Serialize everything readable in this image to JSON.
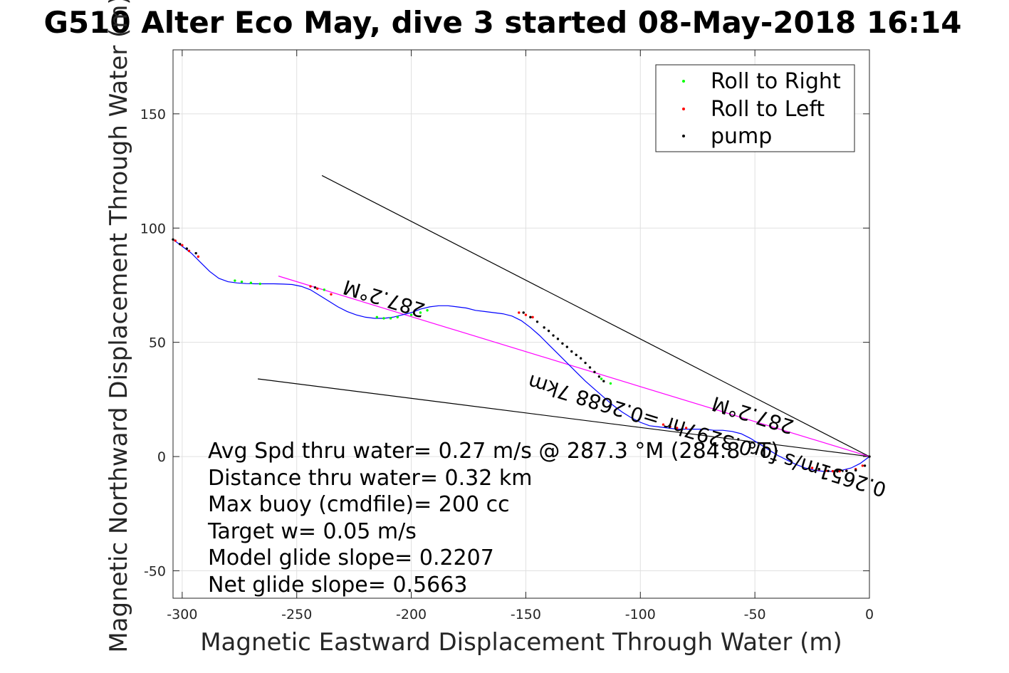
{
  "chart_data": {
    "type": "line",
    "title": "G510 Alter Eco May, dive 3 started 08-May-2018 16:14",
    "xlabel": "Magnetic Eastward Displacement Through Water (m)",
    "ylabel": "Magnetic Northward Displacement Through Water (m)",
    "xlim": [
      -304,
      0
    ],
    "ylim": [
      -62,
      178
    ],
    "xticks": [
      -300,
      -250,
      -200,
      -150,
      -100,
      -50,
      0
    ],
    "yticks": [
      -50,
      0,
      50,
      100,
      150
    ],
    "xtick_labels": [
      "-300",
      "-250",
      "-200",
      "-150",
      "-100",
      "-50",
      "0"
    ],
    "ytick_labels": [
      "-50",
      "0",
      "50",
      "100",
      "150"
    ],
    "grid": true,
    "legend_position": "top-right",
    "legend": [
      {
        "label": "Roll to Right",
        "color": "#00ff00"
      },
      {
        "label": "Roll to Left",
        "color": "#ff0000"
      },
      {
        "label": "pump",
        "color": "#000000"
      }
    ],
    "colors": {
      "track": "#0000ff",
      "avg_line": "#ff00ff",
      "heading_lines": "#000000",
      "grid": "#e0e0e0",
      "axes": "#262626"
    },
    "track": {
      "x": [
        -304,
        -300,
        -296,
        -292,
        -288,
        -284,
        -280,
        -276,
        -272,
        -268,
        -264,
        -260,
        -256,
        -252,
        -248,
        -244,
        -240,
        -236,
        -232,
        -228,
        -224,
        -220,
        -216,
        -212,
        -208,
        -204,
        -200,
        -196,
        -192,
        -188,
        -184,
        -180,
        -176,
        -172,
        -168,
        -164,
        -160,
        -156,
        -152,
        -148,
        -144,
        -140,
        -136,
        -132,
        -128,
        -124,
        -120,
        -116,
        -112,
        -108,
        -104,
        -100,
        -96,
        -92,
        -88,
        -84,
        -80,
        -76,
        -72,
        -68,
        -64,
        -60,
        -56,
        -52,
        -48,
        -44,
        -40,
        -36,
        -32,
        -28,
        -24,
        -20,
        -16,
        -12,
        -8,
        -4,
        0
      ],
      "y": [
        95,
        92,
        89,
        85,
        81,
        78,
        76.5,
        76,
        75.7,
        75.6,
        75.6,
        75.6,
        75.5,
        75.3,
        74.5,
        73,
        70.5,
        68,
        65.5,
        63.5,
        62,
        61,
        60.5,
        60.5,
        61,
        62,
        63,
        64.5,
        65.5,
        66,
        66,
        65.5,
        65,
        64,
        63.5,
        63,
        62.5,
        61.5,
        59.5,
        56.5,
        53,
        49,
        45,
        41,
        37,
        33,
        29.5,
        26,
        22.5,
        19.5,
        17,
        15,
        13.5,
        13,
        12.5,
        12,
        12,
        12,
        12,
        11.5,
        11.5,
        11,
        10,
        8,
        5.5,
        3,
        0.5,
        -1.5,
        -3.5,
        -5,
        -6,
        -6.5,
        -6.5,
        -6,
        -5,
        -3,
        0
      ]
    },
    "roll_right_points": {
      "x": [
        -277,
        -274,
        -270,
        -266,
        -238,
        -215,
        -212,
        -209,
        -206,
        -200,
        -196,
        -193,
        -117,
        -113
      ],
      "y": [
        77,
        76.5,
        76,
        75.6,
        73,
        61,
        60.5,
        60.5,
        61,
        62,
        63,
        64,
        34,
        32
      ]
    },
    "roll_left_points": {
      "x": [
        -303,
        -300,
        -297,
        -293,
        -244,
        -241,
        -235,
        -153,
        -150,
        -147,
        -90,
        -87,
        -84,
        -80,
        -25,
        -22,
        -19,
        -16,
        -13,
        -10,
        -6,
        -3
      ],
      "y": [
        94.5,
        92.5,
        90,
        87.5,
        74.5,
        73.5,
        71,
        63,
        62,
        61,
        14,
        13,
        12.5,
        12.5,
        -5,
        -5.7,
        -6.2,
        -6.4,
        -6.4,
        -6.2,
        -5.5,
        -4
      ]
    },
    "pump_points": {
      "x": [
        -304,
        -301,
        -298,
        -294,
        -242,
        -151,
        -148,
        -145,
        -142,
        -140,
        -138,
        -136,
        -134,
        -132,
        -130,
        -128,
        -126,
        -124,
        -122,
        -120,
        -118,
        -116,
        -22,
        -18,
        -14,
        -10,
        -6,
        -2,
        0
      ],
      "y": [
        95,
        93,
        91,
        89,
        74,
        63,
        61,
        59,
        56.5,
        55,
        53,
        51.5,
        49.5,
        48,
        46,
        44.5,
        43,
        41,
        39,
        37,
        35,
        33,
        -5.5,
        -6.3,
        -6.5,
        -6.3,
        -6,
        -4,
        0
      ]
    },
    "avg_track_line": {
      "x": [
        -258,
        0
      ],
      "y": [
        79,
        0
      ]
    },
    "heading_line_upper": {
      "x": [
        -239,
        0
      ],
      "y": [
        123,
        0
      ]
    },
    "heading_line_lower": {
      "x": [
        -267,
        0
      ],
      "y": [
        34,
        0
      ]
    },
    "rotated_annotations": [
      {
        "text": "287.2°M",
        "anchor_x": -211,
        "anchor_y": 72,
        "angle": 197
      },
      {
        "text": "0.2651m/s for0.3297hr =0.2688 7km",
        "anchor_x": -70,
        "anchor_y": 12,
        "angle": 197
      },
      {
        "text": "287.2°M",
        "anchor_x": -50,
        "anchor_y": 21,
        "angle": 197
      }
    ],
    "stats_text": [
      "Avg Spd thru water=  0.27 m/s @ 287.3 °M (284.8 °T)",
      "Distance thru water=  0.32 km",
      "Max buoy (cmdfile)= 200 cc",
      "Target w= 0.05 m/s",
      "Model glide slope= 0.2207",
      "Net glide slope= 0.5663"
    ]
  }
}
